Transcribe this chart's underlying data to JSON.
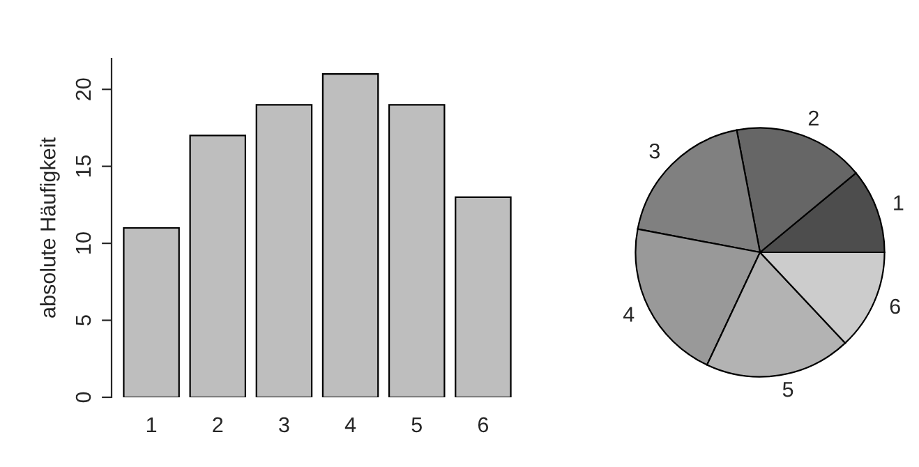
{
  "chart_data": [
    {
      "type": "bar",
      "ylabel": "absolute Häufigkeit",
      "categories": [
        "1",
        "2",
        "3",
        "4",
        "5",
        "6"
      ],
      "values": [
        11,
        17,
        19,
        21,
        19,
        13
      ],
      "color": "#bebebe",
      "ylim": [
        0,
        22
      ],
      "yticks": [
        0,
        5,
        10,
        15,
        20
      ]
    },
    {
      "type": "pie",
      "categories": [
        "1",
        "2",
        "3",
        "4",
        "5",
        "6"
      ],
      "values": [
        11,
        17,
        19,
        21,
        19,
        13
      ],
      "colors": [
        "#4d4d4d",
        "#666666",
        "#808080",
        "#999999",
        "#b3b3b3",
        "#cccccc"
      ]
    }
  ]
}
